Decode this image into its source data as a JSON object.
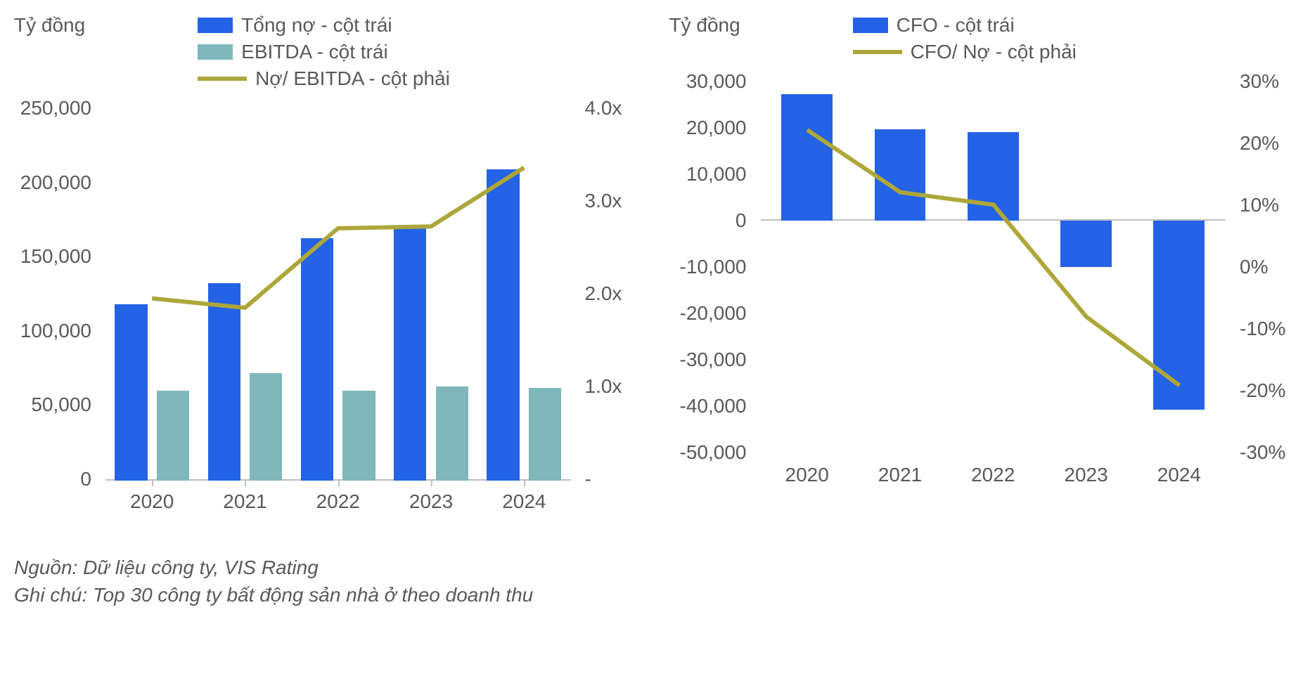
{
  "chart1": {
    "type": "bar+line",
    "axis_title_left": "Tỷ đồng",
    "legend": [
      {
        "label": "Tổng nợ - cột trái",
        "color": "#2462e6",
        "kind": "bar"
      },
      {
        "label": "EBITDA - cột trái",
        "color": "#7fb7bb",
        "kind": "bar"
      },
      {
        "label": "Nợ/ EBITDA - cột phải",
        "color": "#ada73a",
        "kind": "line"
      }
    ],
    "categories": [
      "2020",
      "2021",
      "2022",
      "2023",
      "2024"
    ],
    "series_tongno": [
      118000,
      132000,
      162000,
      170000,
      208000
    ],
    "series_ebitda": [
      60000,
      72000,
      60000,
      63000,
      62000
    ],
    "series_ratio": [
      1.95,
      1.85,
      2.7,
      2.72,
      3.35
    ],
    "y_left": {
      "min": 0,
      "max": 250000,
      "ticks": [
        "250,000",
        "200,000",
        "150,000",
        "100,000",
        "50,000",
        "0"
      ]
    },
    "y_right": {
      "min": 0,
      "max": 4.0,
      "ticks": [
        "4.0x",
        "3.0x",
        "2.0x",
        "1.0x",
        "-"
      ]
    },
    "colors": {
      "bar1": "#2462e6",
      "bar2": "#7fb7bb",
      "line": "#ada73a",
      "axis": "#bfbfbf",
      "text": "#595959",
      "background": "#ffffff"
    },
    "bar_width_pct": 7,
    "line_width": 6,
    "font_size_labels": 28
  },
  "chart2": {
    "type": "bar+line",
    "axis_title_left": "Tỷ đồng",
    "legend": [
      {
        "label": "CFO - cột trái",
        "color": "#2462e6",
        "kind": "bar"
      },
      {
        "label": "CFO/ Nợ - cột phải",
        "color": "#ada73a",
        "kind": "line"
      }
    ],
    "categories": [
      "2020",
      "2021",
      "2022",
      "2023",
      "2024"
    ],
    "series_cfo": [
      27000,
      19500,
      18800,
      -10000,
      -40500
    ],
    "series_ratio": [
      22,
      12,
      10,
      -8,
      -19
    ],
    "y_left": {
      "min": -50000,
      "max": 30000,
      "ticks": [
        "30,000",
        "20,000",
        "10,000",
        "0",
        "-10,000",
        "-20,000",
        "-30,000",
        "-40,000",
        "-50,000"
      ]
    },
    "y_right": {
      "min": -30,
      "max": 30,
      "ticks": [
        "30%",
        "20%",
        "10%",
        "0%",
        "-10%",
        "-20%",
        "-30%"
      ]
    },
    "colors": {
      "bar": "#2462e6",
      "line": "#ada73a",
      "axis": "#bfbfbf",
      "text": "#595959",
      "background": "#ffffff"
    },
    "bar_width_pct": 11,
    "line_width": 6,
    "font_size_labels": 28
  },
  "footnotes": {
    "source": "Nguồn: Dữ liệu công ty, VIS Rating",
    "note": "Ghi chú: Top 30 công ty bất động sản nhà ở theo doanh thu"
  }
}
